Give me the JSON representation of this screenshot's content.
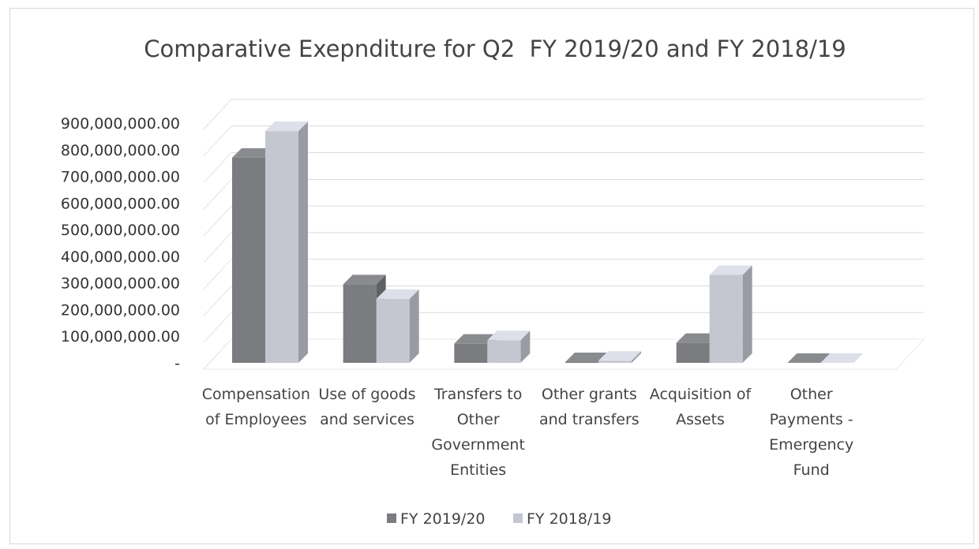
{
  "chart_data": {
    "type": "bar",
    "title": "Comparative Exepnditure for Q2  FY 2019/20 and FY 2018/19",
    "categories": [
      [
        "Compensation",
        "of Employees"
      ],
      [
        "Use of goods",
        "and services"
      ],
      [
        "Transfers to",
        "Other",
        "Government",
        "Entities"
      ],
      [
        "Other grants",
        "and transfers"
      ],
      [
        "Acquisition of",
        "Assets"
      ],
      [
        "Other",
        "Payments -",
        "Emergency",
        "Fund"
      ]
    ],
    "series": [
      {
        "name": "FY 2019/20",
        "color": "#7a7c80",
        "values": [
          770000000,
          295000000,
          72000000,
          3000000,
          75000000,
          0
        ]
      },
      {
        "name": "FY 2018/19",
        "color": "#c5c7d0",
        "values": [
          870000000,
          240000000,
          85000000,
          8000000,
          330000000,
          0
        ]
      }
    ],
    "y_ticks": [
      "-",
      "100,000,000.00",
      "200,000,000.00",
      "300,000,000.00",
      "400,000,000.00",
      "500,000,000.00",
      "600,000,000.00",
      "700,000,000.00",
      "800,000,000.00",
      "900,000,000.00"
    ],
    "ylim": [
      0,
      900000000
    ],
    "grid": true,
    "legend_position": "bottom"
  }
}
